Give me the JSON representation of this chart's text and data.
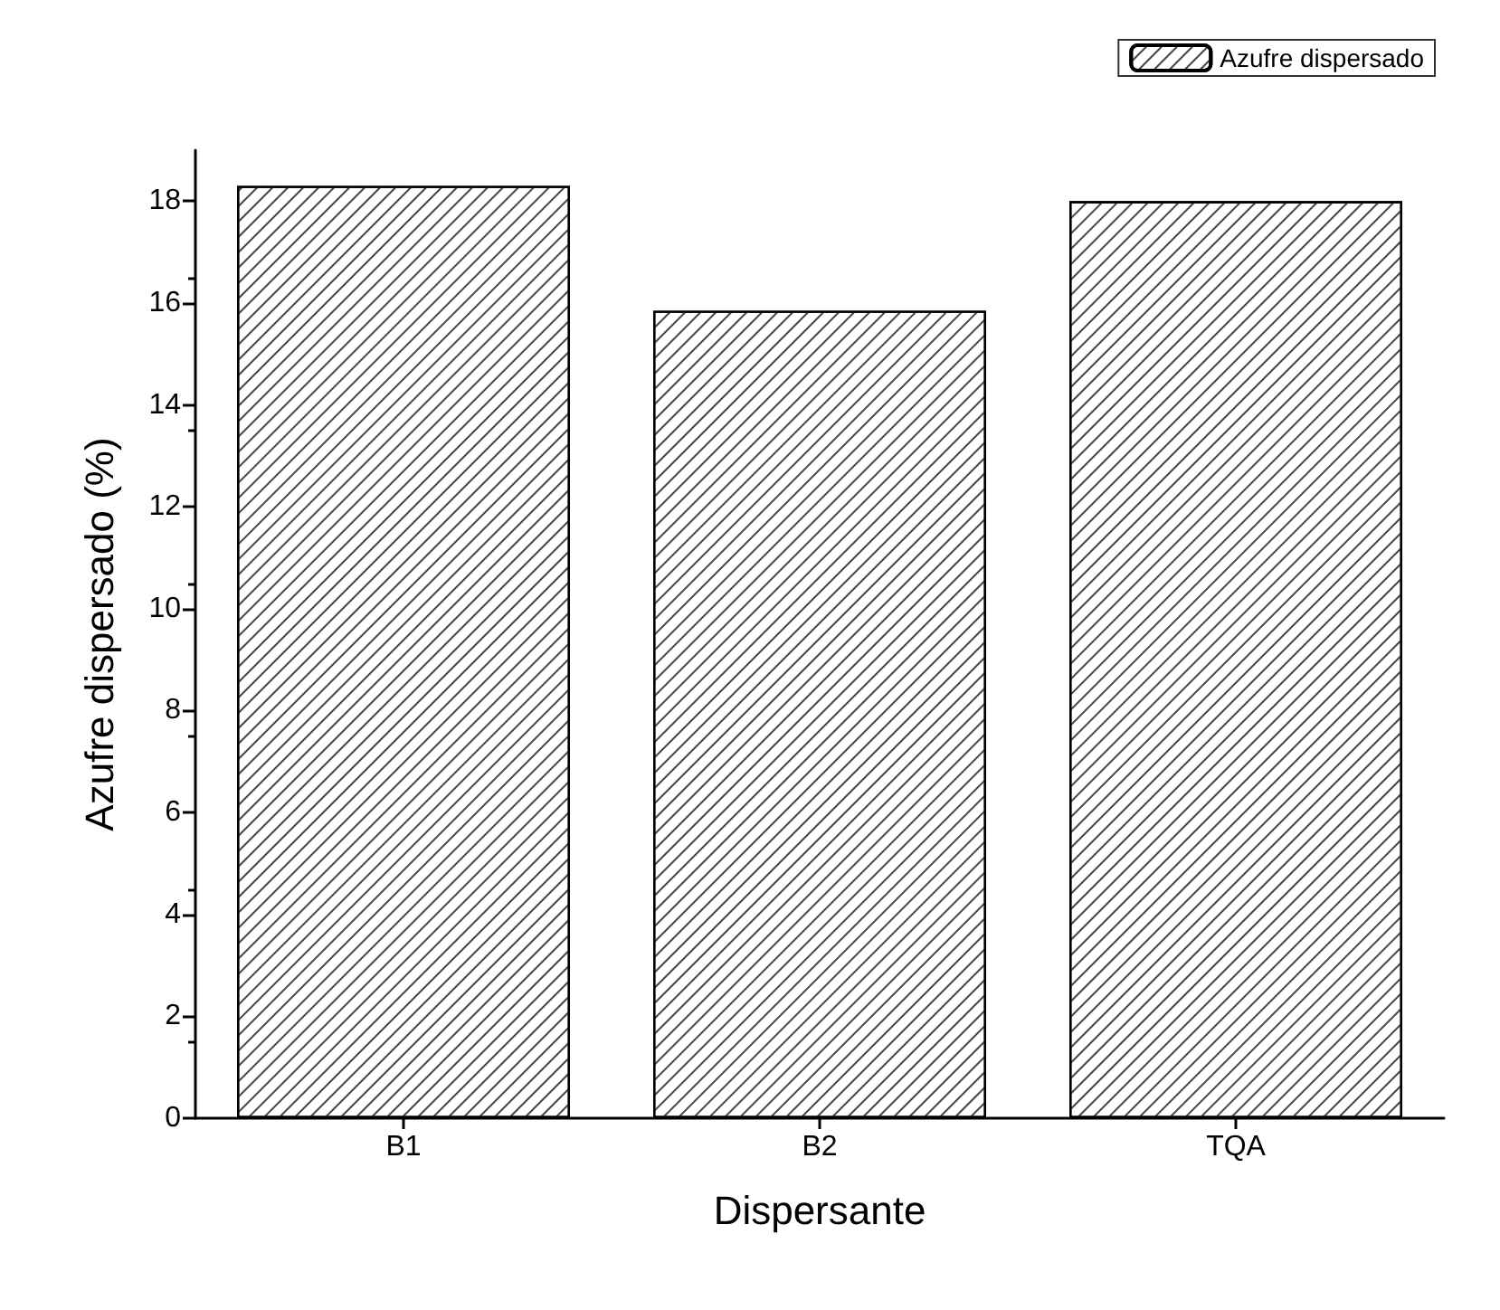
{
  "chart_data": {
    "type": "bar",
    "xlabel": "Dispersante",
    "ylabel": "Azufre dispersado (%)",
    "categories": [
      "B1",
      "B2",
      "TQA"
    ],
    "series": [
      {
        "name": "Azufre dispersado",
        "color": "#ffffff",
        "values": [
          18.3,
          15.85,
          18.0
        ]
      }
    ],
    "ylim": [
      0,
      19
    ],
    "yticks": [
      0,
      2,
      4,
      6,
      8,
      10,
      12,
      14,
      16,
      18
    ],
    "grid": false,
    "legend": "top right"
  }
}
